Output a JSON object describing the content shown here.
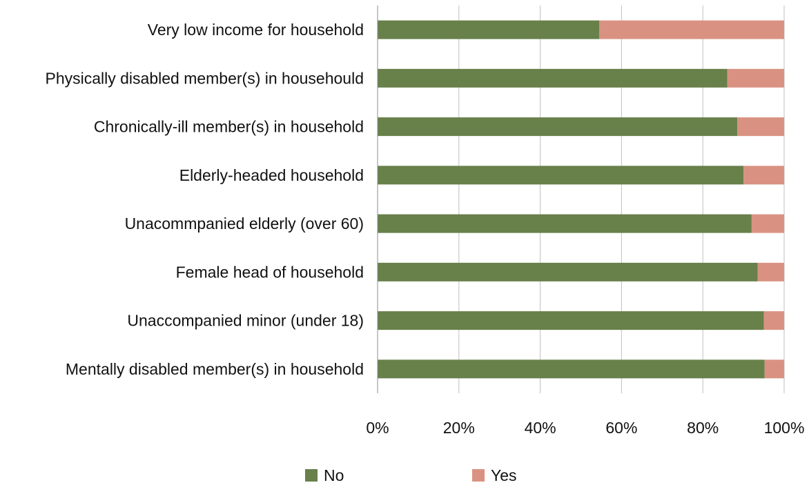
{
  "chart_data": {
    "type": "bar",
    "orientation": "horizontal",
    "stacked": true,
    "percent_stacked": true,
    "categories": [
      "Very low income for household",
      "Physically disabled member(s) in househould",
      "Chronically-ill member(s) in household",
      "Elderly-headed household",
      "Unacommpanied elderly (over 60)",
      "Female head of household",
      "Unaccompanied minor (under 18)",
      "Mentally disabled member(s) in household"
    ],
    "series": [
      {
        "name": "No",
        "color": "#68804A",
        "values": [
          54.5,
          86,
          88.5,
          90,
          92,
          93.5,
          95,
          95.2
        ]
      },
      {
        "name": "Yes",
        "color": "#D99282",
        "values": [
          45.5,
          14,
          11.5,
          10,
          8,
          6.5,
          5,
          4.8
        ]
      }
    ],
    "xlim": [
      0,
      100
    ],
    "x_ticks": [
      0,
      20,
      40,
      60,
      80,
      100
    ],
    "x_tick_labels": [
      "0%",
      "20%",
      "40%",
      "60%",
      "80%",
      "100%"
    ],
    "grid": "vertical",
    "legend_position": "bottom",
    "title": "",
    "xlabel": "",
    "ylabel": ""
  }
}
